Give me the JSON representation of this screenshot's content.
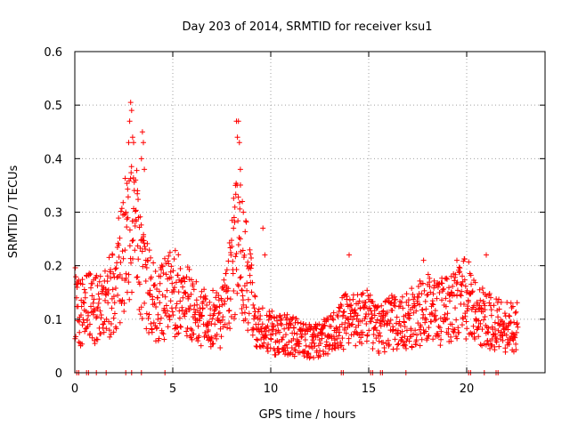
{
  "chart_data": {
    "type": "scatter",
    "title": "Day 203 of 2014, SRMTID for receiver ksu1",
    "xlabel": "GPS time / hours",
    "ylabel": "SRMTID / TECUs",
    "xlim": [
      0,
      24
    ],
    "ylim": [
      0,
      0.6
    ],
    "x_ticks": [
      0,
      5,
      10,
      15,
      20
    ],
    "x_tick_labels": [
      "0",
      "5",
      "10",
      "15",
      "20"
    ],
    "y_ticks": [
      0,
      0.1,
      0.2,
      0.3,
      0.4,
      0.5,
      0.6
    ],
    "y_tick_labels": [
      "0",
      "0.1",
      "0.2",
      "0.3",
      "0.4",
      "0.5",
      "0.6"
    ],
    "grid": true,
    "marker": "plus",
    "series": [
      {
        "name": "SRMTID",
        "color": "#ff0000",
        "trend": [
          [
            0.0,
            0.13
          ],
          [
            0.3,
            0.11
          ],
          [
            0.6,
            0.12
          ],
          [
            1.0,
            0.12
          ],
          [
            1.5,
            0.12
          ],
          [
            2.0,
            0.16
          ],
          [
            2.3,
            0.2
          ],
          [
            2.6,
            0.25
          ],
          [
            2.9,
            0.28
          ],
          [
            3.2,
            0.24
          ],
          [
            3.5,
            0.18
          ],
          [
            3.8,
            0.15
          ],
          [
            4.2,
            0.12
          ],
          [
            4.6,
            0.14
          ],
          [
            5.0,
            0.15
          ],
          [
            5.5,
            0.14
          ],
          [
            6.0,
            0.12
          ],
          [
            6.5,
            0.11
          ],
          [
            7.0,
            0.1
          ],
          [
            7.5,
            0.1
          ],
          [
            7.8,
            0.14
          ],
          [
            8.1,
            0.21
          ],
          [
            8.4,
            0.26
          ],
          [
            8.7,
            0.2
          ],
          [
            9.0,
            0.14
          ],
          [
            9.3,
            0.1
          ],
          [
            9.6,
            0.08
          ],
          [
            10.0,
            0.075
          ],
          [
            10.5,
            0.07
          ],
          [
            11.0,
            0.07
          ],
          [
            11.5,
            0.065
          ],
          [
            12.0,
            0.06
          ],
          [
            12.5,
            0.065
          ],
          [
            13.0,
            0.07
          ],
          [
            13.5,
            0.09
          ],
          [
            14.0,
            0.1
          ],
          [
            14.5,
            0.1
          ],
          [
            15.0,
            0.1
          ],
          [
            15.5,
            0.08
          ],
          [
            16.0,
            0.09
          ],
          [
            16.5,
            0.1
          ],
          [
            17.0,
            0.1
          ],
          [
            17.5,
            0.11
          ],
          [
            18.0,
            0.12
          ],
          [
            18.5,
            0.11
          ],
          [
            19.0,
            0.12
          ],
          [
            19.5,
            0.13
          ],
          [
            20.0,
            0.14
          ],
          [
            20.5,
            0.11
          ],
          [
            21.0,
            0.1
          ],
          [
            21.5,
            0.09
          ],
          [
            22.0,
            0.085
          ],
          [
            22.6,
            0.085
          ]
        ],
        "peaks": [
          [
            2.85,
            0.505
          ],
          [
            2.9,
            0.49
          ],
          [
            2.8,
            0.47
          ],
          [
            2.95,
            0.44
          ],
          [
            3.0,
            0.43
          ],
          [
            2.75,
            0.43
          ],
          [
            3.45,
            0.45
          ],
          [
            3.5,
            0.43
          ],
          [
            3.4,
            0.4
          ],
          [
            3.55,
            0.38
          ],
          [
            3.1,
            0.36
          ],
          [
            2.6,
            0.3
          ],
          [
            3.2,
            0.34
          ],
          [
            8.25,
            0.47
          ],
          [
            8.35,
            0.47
          ],
          [
            8.3,
            0.44
          ],
          [
            8.4,
            0.43
          ],
          [
            8.45,
            0.38
          ],
          [
            8.2,
            0.35
          ],
          [
            8.55,
            0.32
          ],
          [
            8.6,
            0.3
          ],
          [
            8.1,
            0.27
          ],
          [
            9.6,
            0.27
          ],
          [
            9.7,
            0.22
          ],
          [
            14.0,
            0.22
          ],
          [
            21.0,
            0.22
          ],
          [
            19.5,
            0.21
          ],
          [
            17.8,
            0.21
          ]
        ],
        "gap_markers_x": [
          0.1,
          0.2,
          0.6,
          0.7,
          1.1,
          1.6,
          2.6,
          2.9,
          3.4,
          4.6,
          13.6,
          13.7,
          15.1,
          15.2,
          15.6,
          15.7,
          16.9,
          20.1,
          20.2,
          20.9,
          21.5,
          21.6
        ]
      }
    ]
  }
}
